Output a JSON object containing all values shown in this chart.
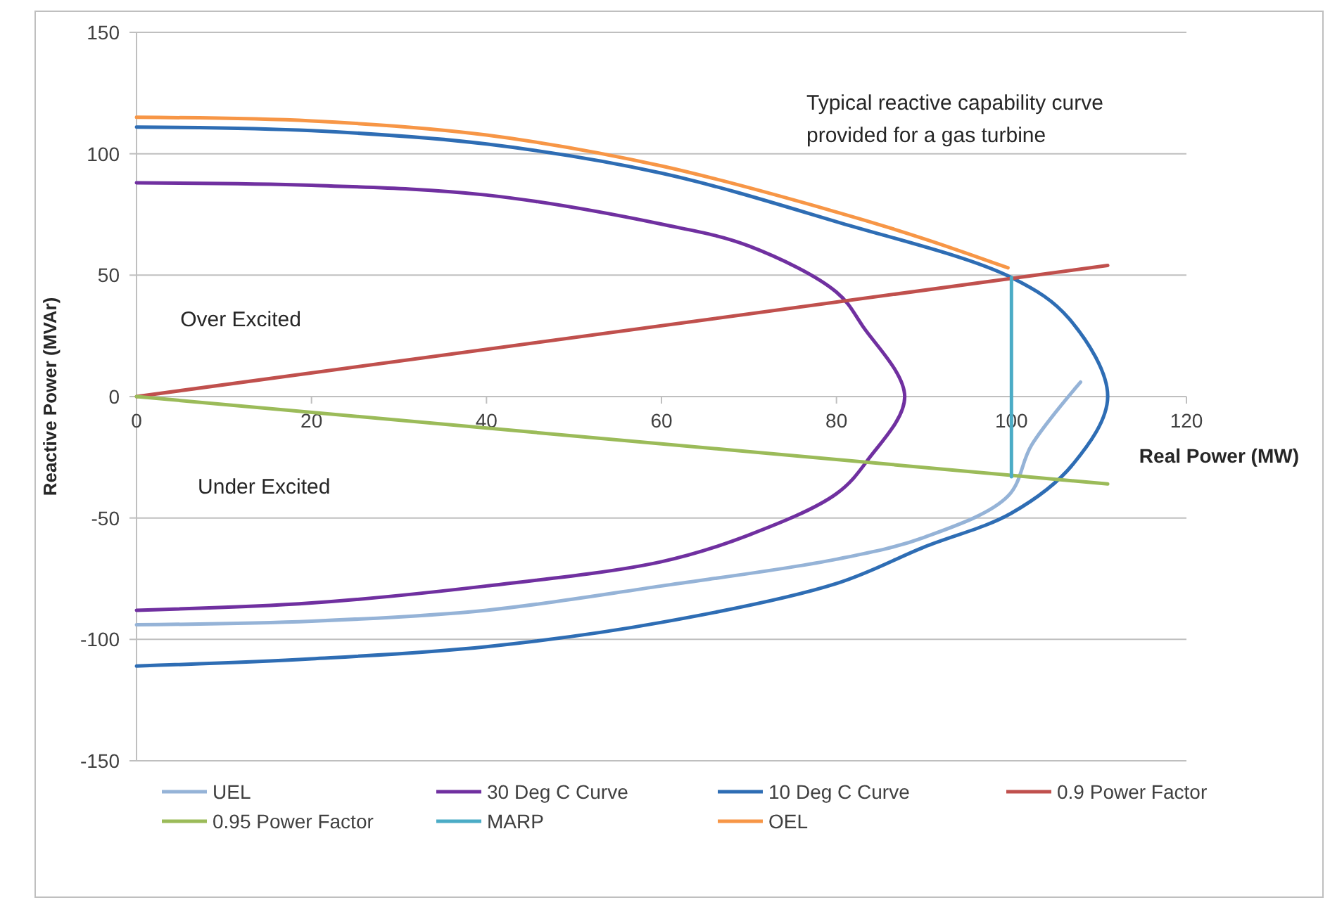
{
  "chart_data": {
    "type": "line",
    "title": "Typical reactive capability curve provided for a gas turbine",
    "xlabel": "Real Power (MW)",
    "ylabel": "Reactive Power (MVAr)",
    "xlim": [
      0,
      120
    ],
    "xticks": [
      0,
      20,
      40,
      60,
      80,
      100,
      120
    ],
    "ylim": [
      -150,
      150
    ],
    "yticks": [
      -150,
      -100,
      -50,
      0,
      50,
      100,
      150
    ],
    "grid": "y",
    "legend": "bottom",
    "marker": "none",
    "line_style": "solid",
    "annotations": [
      "Over Excited",
      "Under Excited"
    ],
    "series": [
      {
        "name": "UEL",
        "color": "#95b3d7",
        "x": [
          0,
          20,
          40,
          60,
          80,
          90,
          99.6,
          102.3,
          107.9
        ],
        "values": [
          -94,
          -92.5,
          -88,
          -78,
          -67,
          -58,
          -41,
          -20,
          6
        ]
      },
      {
        "name": "30 Deg C Curve",
        "color": "#7030a0",
        "x": [
          0,
          20,
          40,
          60,
          70,
          80,
          83,
          87.8,
          83.6,
          80,
          70,
          60,
          40,
          20,
          0
        ],
        "values": [
          88,
          87,
          83,
          71,
          62,
          43,
          29,
          0,
          -26,
          -40,
          -57,
          -68,
          -78,
          -85,
          -88
        ]
      },
      {
        "name": "10 Deg C Curve",
        "color": "#2e6db4",
        "x": [
          0,
          20,
          40,
          60,
          80,
          100,
          106.6,
          111,
          107,
          100,
          90,
          80,
          60,
          40,
          20,
          0
        ],
        "values": [
          111,
          109.5,
          104,
          92,
          72,
          49,
          32,
          0,
          -28,
          -48,
          -62,
          -77,
          -93,
          -103,
          -108,
          -111
        ]
      },
      {
        "name": "0.9 Power Factor",
        "color": "#c0504d",
        "x": [
          0,
          111
        ],
        "values": [
          0,
          54
        ]
      },
      {
        "name": "0.95 Power Factor",
        "color": "#9bbb59",
        "x": [
          0,
          111
        ],
        "values": [
          0,
          -36
        ]
      },
      {
        "name": "MARP",
        "color": "#4bacc6",
        "x": [
          100,
          100
        ],
        "values": [
          -33,
          49
        ]
      },
      {
        "name": "OEL",
        "color": "#f79646",
        "x": [
          0,
          20,
          40,
          60,
          80,
          90,
          99.6
        ],
        "values": [
          115,
          113.5,
          107.7,
          95,
          76,
          65,
          53
        ]
      }
    ]
  }
}
